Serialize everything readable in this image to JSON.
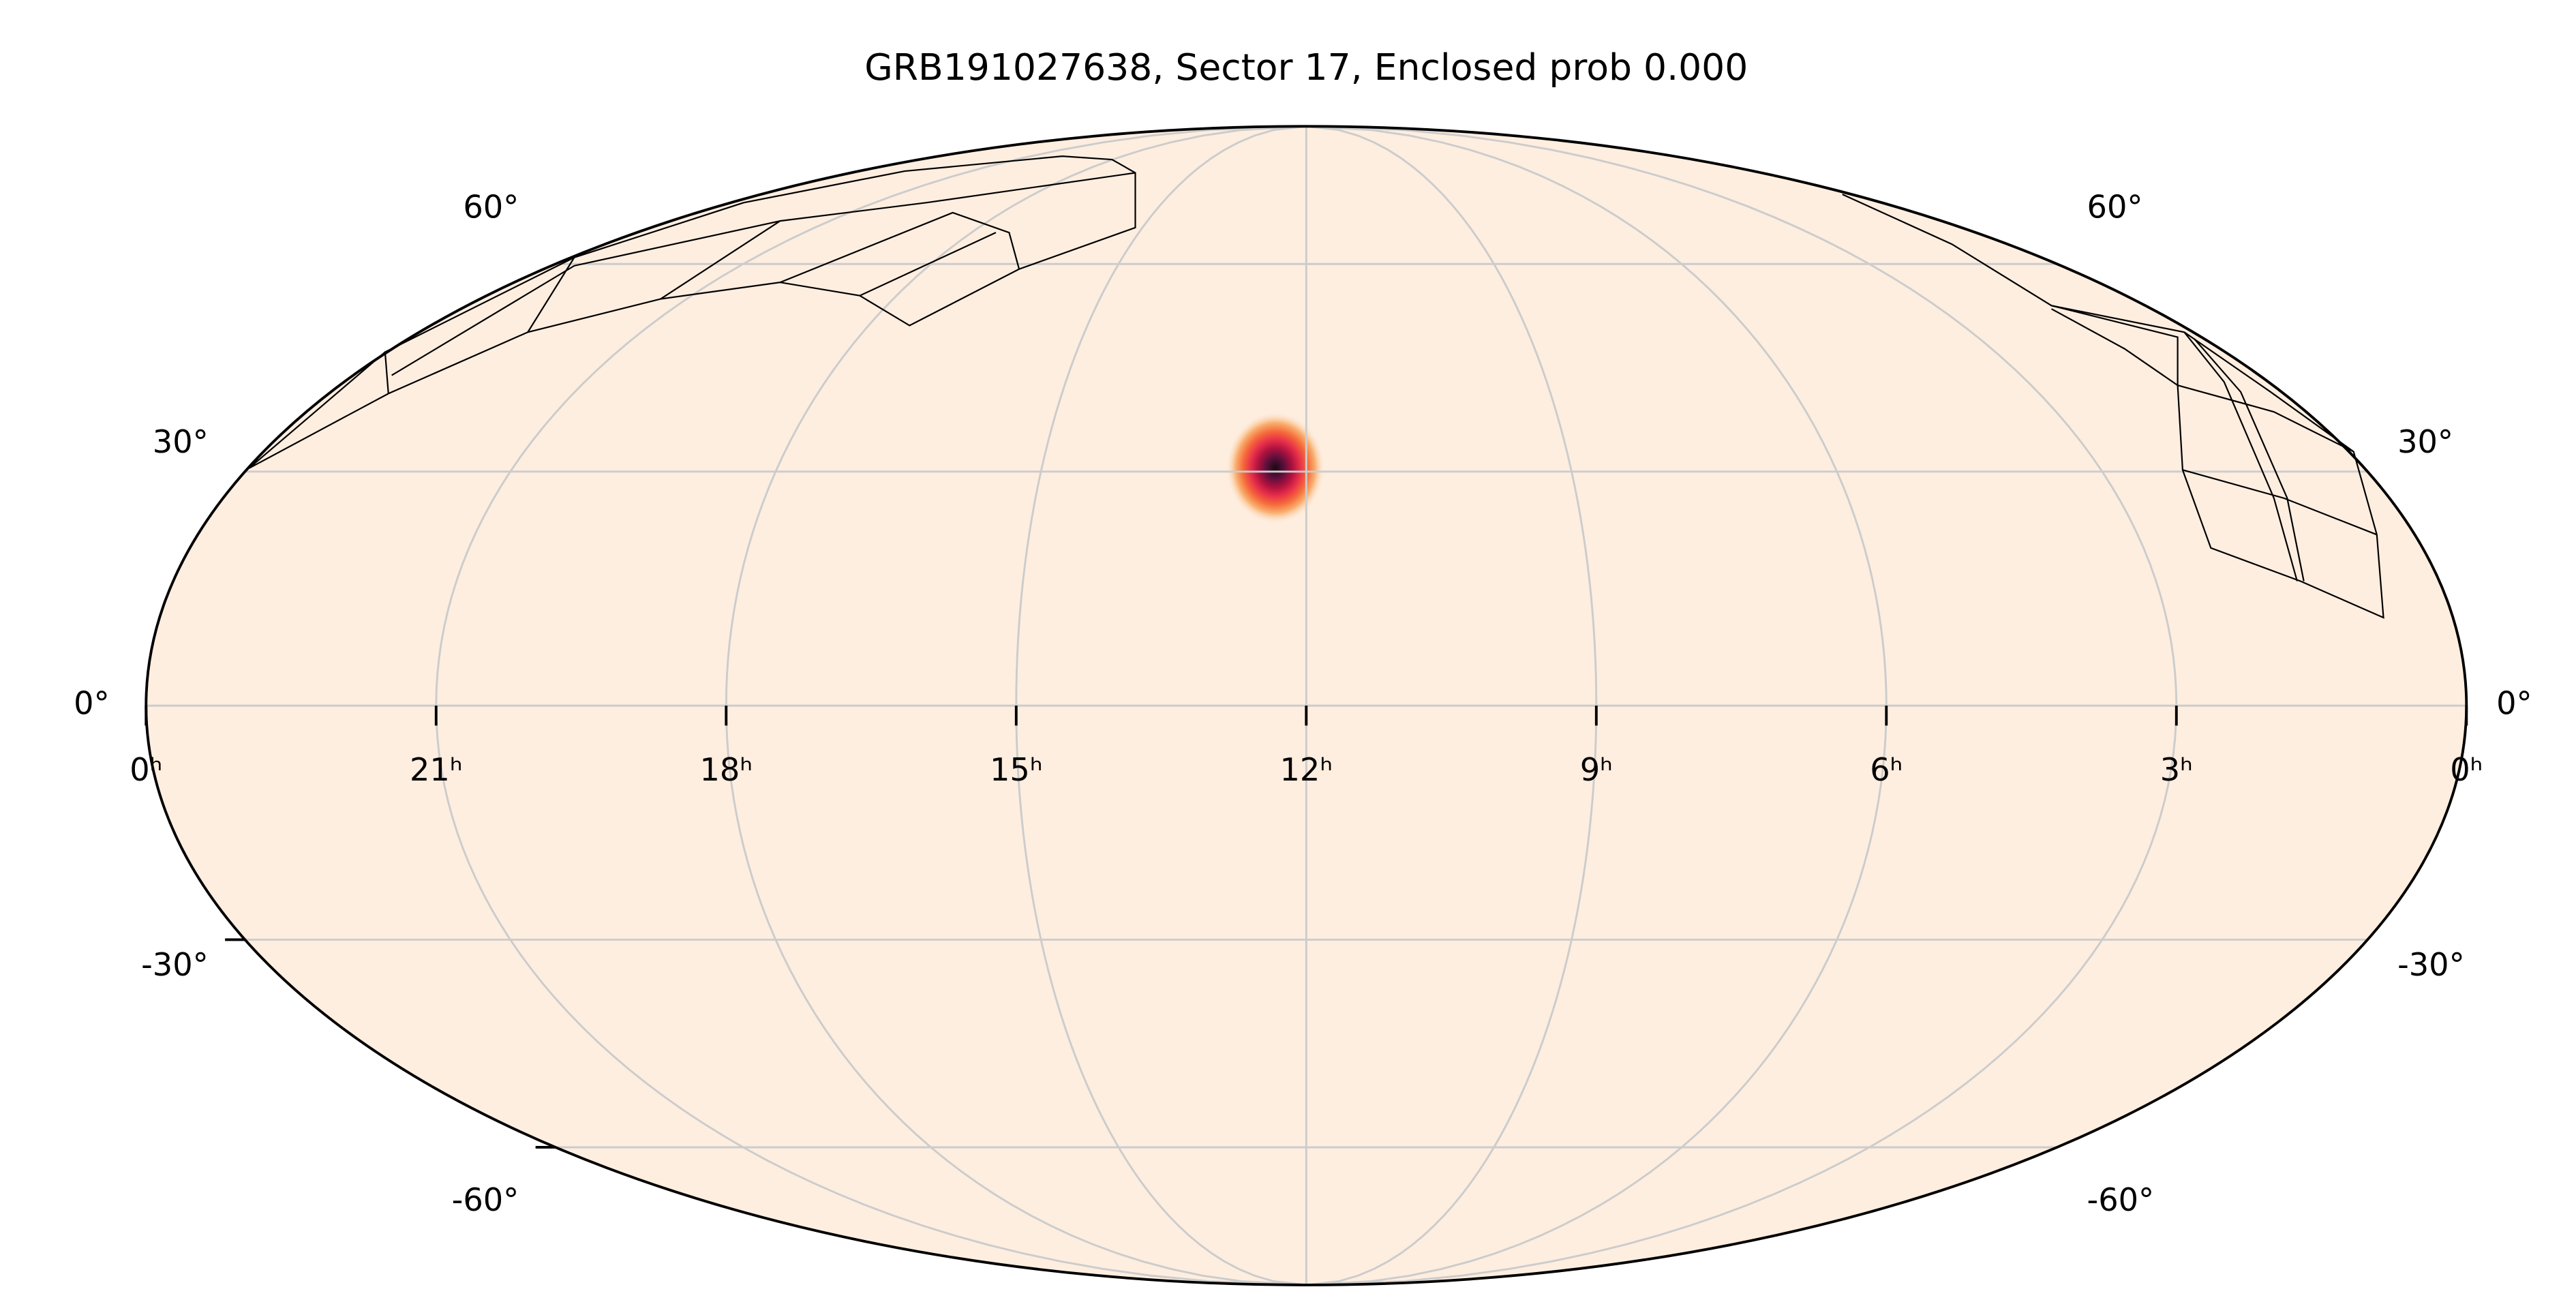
{
  "chart_data": {
    "type": "mollweide",
    "title": "GRB191027638, Sector 17, Enclosed prob 0.000",
    "xlim": [
      24,
      0
    ],
    "xticks": [
      {
        "value": 24,
        "label": "0ʰ"
      },
      {
        "value": 21,
        "label": "21ʰ"
      },
      {
        "value": 18,
        "label": "18ʰ"
      },
      {
        "value": 15,
        "label": "15ʰ"
      },
      {
        "value": 12,
        "label": "12ʰ"
      },
      {
        "value": 9,
        "label": "9ʰ"
      },
      {
        "value": 6,
        "label": "6ʰ"
      },
      {
        "value": 3,
        "label": "3ʰ"
      },
      {
        "value": 0,
        "label": "0ʰ"
      }
    ],
    "ylim": [
      -90,
      90
    ],
    "yticks": [
      {
        "value": -60,
        "label": "-60°"
      },
      {
        "value": -30,
        "label": "-30°"
      },
      {
        "value": 0,
        "label": "0°"
      },
      {
        "value": 30,
        "label": "30°"
      },
      {
        "value": 60,
        "label": "60°"
      }
    ],
    "grid": true,
    "background": "#feeee0",
    "peak": {
      "ra": 12.35,
      "dec": 30.5
    }
  }
}
